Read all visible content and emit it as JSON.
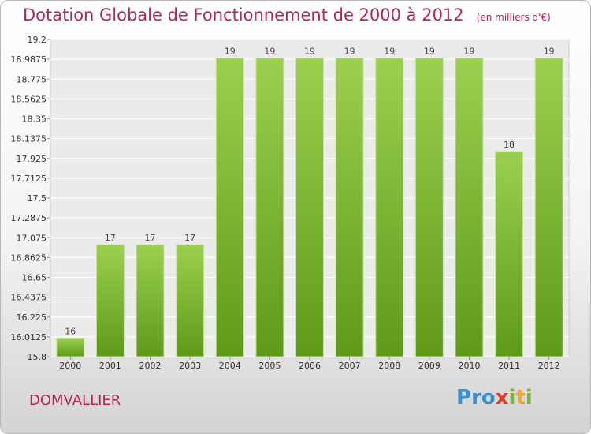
{
  "title": "Dotation Globale de Fonctionnement de 2000 à 2012",
  "subtitle": "(en milliers d'€)",
  "commune": "DOMVALLIER",
  "logo": {
    "letters": [
      "P",
      "r",
      "o",
      "x",
      "i",
      "t",
      "i"
    ],
    "colors": [
      "#3a8fd0",
      "#3a8fd0",
      "#3a8fd0",
      "#e0382c",
      "#7ab833",
      "#f5a623",
      "#7ab833"
    ]
  },
  "chart_data": {
    "type": "bar",
    "categories": [
      "2000",
      "2001",
      "2002",
      "2003",
      "2004",
      "2005",
      "2006",
      "2007",
      "2008",
      "2009",
      "2010",
      "2011",
      "2012"
    ],
    "values": [
      16,
      17,
      17,
      17,
      19,
      19,
      19,
      19,
      19,
      19,
      19,
      18,
      19
    ],
    "ylim": [
      15.8,
      19.2
    ],
    "yticks": [
      "15.8",
      "16.0125",
      "16.225",
      "16.4375",
      "16.65",
      "16.8625",
      "17.075",
      "17.2875",
      "17.5",
      "17.7125",
      "17.925",
      "18.1375",
      "18.35",
      "18.5625",
      "18.775",
      "18.9875",
      "19.2"
    ],
    "grid": true,
    "bar_color": "#8cc63f"
  }
}
